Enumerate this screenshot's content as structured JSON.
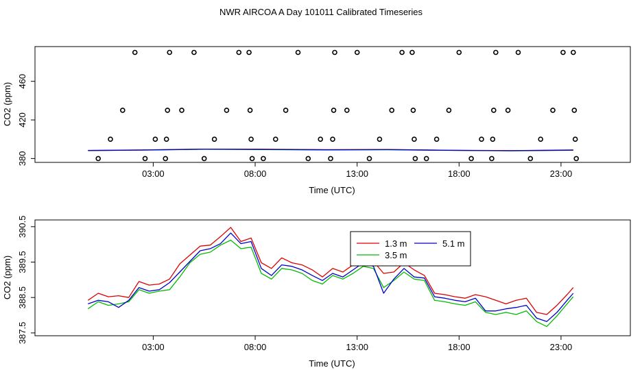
{
  "title": "NWR AIRCOA A  Day 101011  Calibrated Timeseries",
  "colors": {
    "h1_3": "#dd0000",
    "h3_5": "#00bb00",
    "h5_1": "#0000cc",
    "axis": "#000000"
  },
  "chart_data": [
    {
      "type": "scatter",
      "xlabel": "Time (UTC)",
      "ylabel": "CO2 (ppm)",
      "xlim": [
        -2.8,
        26.4
      ],
      "ylim": [
        376,
        496
      ],
      "xticks": [
        3,
        8,
        13,
        18,
        23
      ],
      "xtick_labels": [
        "03:00",
        "08:00",
        "13:00",
        "18:00",
        "23:00"
      ],
      "yticks": [
        380,
        420,
        460
      ],
      "ytick_labels": [
        "380",
        "420",
        "460"
      ],
      "calibration_points": [
        {
          "x": 0.3,
          "y": 380
        },
        {
          "x": 0.9,
          "y": 400
        },
        {
          "x": 1.5,
          "y": 430
        },
        {
          "x": 2.1,
          "y": 490
        },
        {
          "x": 2.6,
          "y": 380
        },
        {
          "x": 3.1,
          "y": 400
        },
        {
          "x": 3.6,
          "y": 380
        },
        {
          "x": 3.65,
          "y": 400
        },
        {
          "x": 3.7,
          "y": 430
        },
        {
          "x": 3.8,
          "y": 490
        },
        {
          "x": 4.4,
          "y": 430
        },
        {
          "x": 5.0,
          "y": 490
        },
        {
          "x": 5.5,
          "y": 380
        },
        {
          "x": 6.0,
          "y": 400
        },
        {
          "x": 6.6,
          "y": 430
        },
        {
          "x": 7.2,
          "y": 490
        },
        {
          "x": 7.7,
          "y": 490
        },
        {
          "x": 7.75,
          "y": 430
        },
        {
          "x": 7.8,
          "y": 400
        },
        {
          "x": 7.85,
          "y": 380
        },
        {
          "x": 8.4,
          "y": 380
        },
        {
          "x": 9.0,
          "y": 400
        },
        {
          "x": 9.5,
          "y": 430
        },
        {
          "x": 10.1,
          "y": 490
        },
        {
          "x": 10.6,
          "y": 380
        },
        {
          "x": 11.2,
          "y": 400
        },
        {
          "x": 11.7,
          "y": 380
        },
        {
          "x": 11.8,
          "y": 400
        },
        {
          "x": 11.85,
          "y": 430
        },
        {
          "x": 11.9,
          "y": 490
        },
        {
          "x": 12.5,
          "y": 430
        },
        {
          "x": 13.0,
          "y": 490
        },
        {
          "x": 13.6,
          "y": 380
        },
        {
          "x": 14.1,
          "y": 400
        },
        {
          "x": 14.7,
          "y": 430
        },
        {
          "x": 15.2,
          "y": 490
        },
        {
          "x": 15.7,
          "y": 490
        },
        {
          "x": 15.75,
          "y": 430
        },
        {
          "x": 15.8,
          "y": 400
        },
        {
          "x": 15.85,
          "y": 380
        },
        {
          "x": 16.4,
          "y": 380
        },
        {
          "x": 16.9,
          "y": 400
        },
        {
          "x": 17.5,
          "y": 430
        },
        {
          "x": 18.0,
          "y": 490
        },
        {
          "x": 18.6,
          "y": 380
        },
        {
          "x": 19.1,
          "y": 400
        },
        {
          "x": 19.6,
          "y": 380
        },
        {
          "x": 19.65,
          "y": 400
        },
        {
          "x": 19.7,
          "y": 430
        },
        {
          "x": 19.8,
          "y": 490
        },
        {
          "x": 20.4,
          "y": 430
        },
        {
          "x": 20.9,
          "y": 490
        },
        {
          "x": 21.5,
          "y": 380
        },
        {
          "x": 22.0,
          "y": 400
        },
        {
          "x": 22.6,
          "y": 430
        },
        {
          "x": 23.1,
          "y": 490
        },
        {
          "x": 23.6,
          "y": 490
        },
        {
          "x": 23.65,
          "y": 430
        },
        {
          "x": 23.7,
          "y": 400
        },
        {
          "x": 23.75,
          "y": 380
        }
      ],
      "series": [
        {
          "name": "1.3 m",
          "color": "#dd0000",
          "x": [
            -0.2,
            2.5,
            5.5,
            8.5,
            11.5,
            14.5,
            17.5,
            20.5,
            23.6
          ],
          "values": [
            388.4,
            388.9,
            389.8,
            389.6,
            389.2,
            389.4,
            388.6,
            388.2,
            388.9
          ]
        },
        {
          "name": "3.5 m",
          "color": "#00bb00",
          "x": [
            -0.2,
            2.5,
            5.5,
            8.5,
            11.5,
            14.5,
            17.5,
            20.5,
            23.6
          ],
          "values": [
            388.2,
            388.7,
            389.6,
            389.3,
            388.9,
            389.1,
            388.4,
            388.0,
            388.6
          ]
        },
        {
          "name": "5.1 m",
          "color": "#0000cc",
          "x": [
            -0.2,
            2.5,
            5.5,
            8.5,
            11.5,
            14.5,
            17.5,
            20.5,
            23.6
          ],
          "values": [
            388.3,
            388.8,
            389.7,
            389.4,
            389.0,
            389.2,
            388.5,
            388.1,
            388.7
          ]
        }
      ]
    },
    {
      "type": "line",
      "xlabel": "Time (UTC)",
      "ylabel": "CO2 (ppm)",
      "xlim": [
        -2.8,
        26.4
      ],
      "ylim": [
        387.42,
        390.69
      ],
      "xticks": [
        3,
        8,
        13,
        18,
        23
      ],
      "xtick_labels": [
        "03:00",
        "08:00",
        "13:00",
        "18:00",
        "23:00"
      ],
      "yticks": [
        387.5,
        388.5,
        389.5,
        390.5
      ],
      "ytick_labels": [
        "387.5",
        "388.5",
        "389.5",
        "390.5"
      ],
      "legend_position": "top-center",
      "x": [
        -0.2,
        0.3,
        0.8,
        1.3,
        1.8,
        2.3,
        2.8,
        3.3,
        3.8,
        4.3,
        4.8,
        5.3,
        5.8,
        6.3,
        6.8,
        7.3,
        7.8,
        8.3,
        8.8,
        9.3,
        9.8,
        10.3,
        10.8,
        11.3,
        11.8,
        12.3,
        12.8,
        13.3,
        13.8,
        14.3,
        14.8,
        15.3,
        15.8,
        16.3,
        16.8,
        17.3,
        17.8,
        18.3,
        18.8,
        19.3,
        19.8,
        20.3,
        20.8,
        21.3,
        21.8,
        22.3,
        22.8,
        23.3,
        23.6
      ],
      "series": [
        {
          "name": "1.3 m",
          "color": "#dd0000",
          "values": [
            388.42,
            388.62,
            388.52,
            388.55,
            388.5,
            388.95,
            388.85,
            388.88,
            389.02,
            389.45,
            389.7,
            389.95,
            389.98,
            390.22,
            390.48,
            390.08,
            390.18,
            389.48,
            389.32,
            389.62,
            389.48,
            389.42,
            389.28,
            389.08,
            389.32,
            389.22,
            389.42,
            389.58,
            389.52,
            389.18,
            389.22,
            389.48,
            389.28,
            389.12,
            388.62,
            388.58,
            388.52,
            388.48,
            388.58,
            388.52,
            388.42,
            388.32,
            388.42,
            388.48,
            388.08,
            388.02,
            388.28,
            388.58,
            388.78
          ]
        },
        {
          "name": "3.5 m",
          "color": "#00bb00",
          "values": [
            388.18,
            388.38,
            388.28,
            388.32,
            388.38,
            388.72,
            388.62,
            388.68,
            388.72,
            389.08,
            389.48,
            389.72,
            389.78,
            389.98,
            390.12,
            389.88,
            389.92,
            389.18,
            389.02,
            389.32,
            389.28,
            389.18,
            388.98,
            388.88,
            389.12,
            389.02,
            389.18,
            389.38,
            389.32,
            388.78,
            388.98,
            389.22,
            389.02,
            388.98,
            388.42,
            388.38,
            388.32,
            388.28,
            388.38,
            388.08,
            388.02,
            388.08,
            388.02,
            388.12,
            387.82,
            387.68,
            387.98,
            388.32,
            388.52
          ]
        },
        {
          "name": "5.1 m",
          "color": "#0000cc",
          "values": [
            388.32,
            388.42,
            388.38,
            388.22,
            388.42,
            388.78,
            388.68,
            388.72,
            388.92,
            389.22,
            389.52,
            389.82,
            389.88,
            390.02,
            390.32,
            390.02,
            390.08,
            389.32,
            389.12,
            389.42,
            389.38,
            389.28,
            389.12,
            388.98,
            389.18,
            389.08,
            389.28,
            389.48,
            389.38,
            388.62,
            389.02,
            389.32,
            389.08,
            389.05,
            388.52,
            388.48,
            388.42,
            388.38,
            388.48,
            388.12,
            388.12,
            388.18,
            388.22,
            388.28,
            387.92,
            387.82,
            388.08,
            388.42,
            388.62
          ]
        }
      ]
    }
  ]
}
